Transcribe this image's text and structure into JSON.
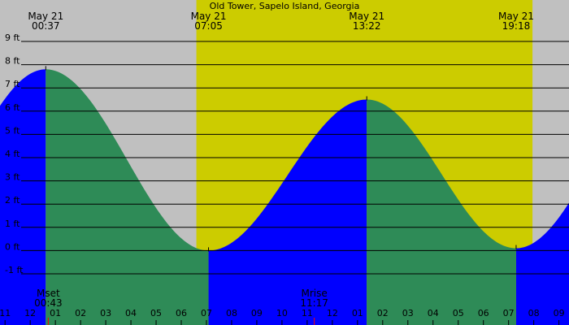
{
  "chart_data": {
    "type": "area",
    "title": "Old Tower, Sapelo Island, Georgia",
    "ylim": [
      -2,
      9.5
    ],
    "yticks": [
      -1,
      0,
      1,
      2,
      3,
      4,
      5,
      6,
      7,
      8,
      9
    ],
    "ytick_labels": [
      "-1 ft",
      "0 ft",
      "1 ft",
      "2 ft",
      "3 ft",
      "4 ft",
      "5 ft",
      "6 ft",
      "7 ft",
      "8 ft",
      "9 ft"
    ],
    "xlim_hours": [
      -1.2,
      21.4
    ],
    "hour_ticks": [
      -1,
      0,
      1,
      2,
      3,
      4,
      5,
      6,
      7,
      8,
      9,
      10,
      11,
      12,
      13,
      14,
      15,
      16,
      17,
      18,
      19,
      20,
      21
    ],
    "hour_labels": [
      "11",
      "12",
      "01",
      "02",
      "03",
      "04",
      "05",
      "06",
      "07",
      "08",
      "09",
      "10",
      "11",
      "12",
      "01",
      "02",
      "03",
      "04",
      "05",
      "06",
      "07",
      "08",
      "09"
    ],
    "daylight": {
      "start_hour": 6.6,
      "end_hour": 19.95
    },
    "tide_events": [
      {
        "time_hour": 0.617,
        "height_ft": 7.8,
        "date": "May 21",
        "time": "00:37"
      },
      {
        "time_hour": 7.083,
        "height_ft": 0.0,
        "date": "May 21",
        "time": "07:05"
      },
      {
        "time_hour": 13.367,
        "height_ft": 6.5,
        "date": "May 21",
        "time": "13:22"
      },
      {
        "time_hour": 19.3,
        "height_ft": 0.1,
        "date": "May 21",
        "time": "19:18"
      }
    ],
    "boundary_before": {
      "time_hour": -5.6,
      "height_ft": -0.2
    },
    "boundary_after": {
      "time_hour": 25.5,
      "height_ft": 7.7
    },
    "moon_events": [
      {
        "label": "Mset",
        "time": "00:43",
        "time_hour": 0.717
      },
      {
        "label": "Mrise",
        "time": "11:17",
        "time_hour": 11.283
      }
    ],
    "colors": {
      "night": "#c0c0c0",
      "day": "#cccc00",
      "rising": "#0000ff",
      "falling": "#2e8b57",
      "grid": "#000000",
      "text": "#000000",
      "moon_marker": "#ff0000"
    }
  }
}
